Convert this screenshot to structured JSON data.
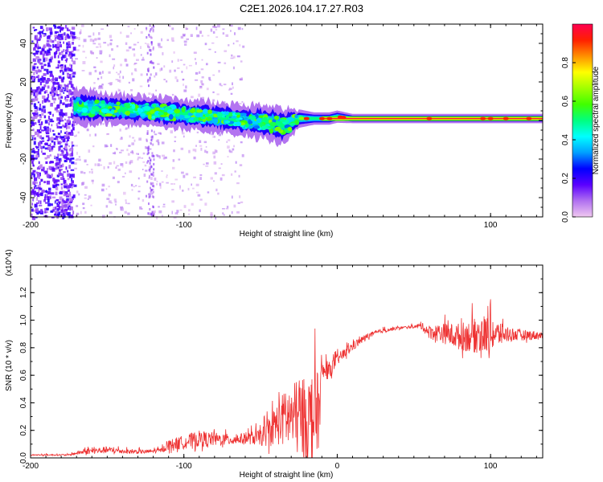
{
  "title": "C2E1.2026.104.17.27.R03",
  "chart_data": [
    {
      "type": "heatmap",
      "name": "spectrogram",
      "xlabel": "Height of straight line (km)",
      "ylabel": "Frequency (Hz)",
      "xlim": [
        -200,
        134
      ],
      "ylim": [
        -50,
        50
      ],
      "x_ticks": [
        -200,
        -100,
        0,
        100
      ],
      "x_tick_labels": [
        "-200",
        "-100",
        "",
        "100"
      ],
      "y_ticks": [
        -40,
        -20,
        0,
        20,
        40
      ],
      "y_tick_labels": [
        "-40",
        "-20",
        "0",
        "20",
        "40"
      ],
      "ridge": {
        "x": [
          -170,
          -150,
          -120,
          -100,
          -80,
          -60,
          -45,
          -35,
          -25,
          -15,
          -5,
          0,
          10,
          30,
          60,
          100,
          134
        ],
        "center": [
          7,
          6,
          5,
          3,
          2,
          0,
          -1,
          -3,
          1,
          1,
          1,
          2,
          1,
          1,
          1,
          1,
          1
        ],
        "halfwidth": [
          6,
          5,
          5,
          5,
          5,
          5,
          6,
          6,
          3,
          2,
          2,
          2,
          1.5,
          1.5,
          1.5,
          1.5,
          1.5
        ]
      },
      "noise_region": [
        -200,
        -172
      ],
      "colorbar": {
        "label": "Normalized spectral amplitude",
        "range": [
          0,
          1
        ],
        "ticks": [
          0.0,
          0.2,
          0.4,
          0.6,
          0.8
        ],
        "tick_labels": [
          "0.0",
          "0.2",
          "0.4",
          "0.6",
          "0.8"
        ],
        "colors": [
          "#f0c8f0",
          "#b070f0",
          "#5a00ff",
          "#0000ff",
          "#00a0ff",
          "#00ffff",
          "#00ff80",
          "#40ff00",
          "#a0ff00",
          "#ffff00",
          "#ff9000",
          "#ff2000",
          "#ff0050"
        ]
      }
    },
    {
      "type": "line",
      "name": "snr",
      "xlabel": "Height of straight line (km)",
      "ylabel": "SNR (10 * v/v)",
      "y_scale_label": "(x10^4)",
      "xlim": [
        -200,
        134
      ],
      "ylim": [
        0,
        1.4
      ],
      "x_ticks": [
        -200,
        -100,
        0,
        100
      ],
      "x_tick_labels": [
        "-200",
        "-100",
        "0",
        "100"
      ],
      "y_ticks": [
        0.0,
        0.2,
        0.4,
        0.6,
        0.8,
        1.0,
        1.2
      ],
      "y_tick_labels": [
        "0.0",
        "0.2",
        "0.4",
        "0.6",
        "0.8",
        "1.0",
        "1.2"
      ],
      "color": "#ee3333",
      "envelope": {
        "x": [
          -200,
          -175,
          -165,
          -150,
          -135,
          -125,
          -115,
          -110,
          -100,
          -90,
          -80,
          -70,
          -60,
          -50,
          -45,
          -40,
          -35,
          -30,
          -25,
          -20,
          -15,
          -12,
          -10,
          -5,
          0,
          5,
          10,
          20,
          30,
          40,
          50,
          55,
          60,
          70,
          80,
          90,
          95,
          100,
          110,
          120,
          134
        ],
        "base": [
          0.02,
          0.02,
          0.04,
          0.05,
          0.04,
          0.04,
          0.05,
          0.08,
          0.1,
          0.12,
          0.12,
          0.12,
          0.13,
          0.13,
          0.15,
          0.2,
          0.22,
          0.22,
          0.2,
          0.2,
          0.2,
          0.25,
          0.6,
          0.62,
          0.7,
          0.75,
          0.8,
          0.88,
          0.92,
          0.94,
          0.95,
          0.95,
          0.9,
          0.88,
          0.85,
          0.85,
          0.85,
          0.86,
          0.88,
          0.88,
          0.88
        ],
        "spread": [
          0.01,
          0.01,
          0.04,
          0.05,
          0.03,
          0.03,
          0.03,
          0.08,
          0.1,
          0.12,
          0.1,
          0.08,
          0.08,
          0.12,
          0.2,
          0.3,
          0.4,
          0.5,
          0.55,
          0.6,
          0.65,
          0.55,
          0.15,
          0.12,
          0.08,
          0.08,
          0.07,
          0.04,
          0.03,
          0.02,
          0.02,
          0.05,
          0.1,
          0.15,
          0.2,
          0.25,
          0.3,
          0.25,
          0.12,
          0.08,
          0.06
        ]
      }
    }
  ]
}
